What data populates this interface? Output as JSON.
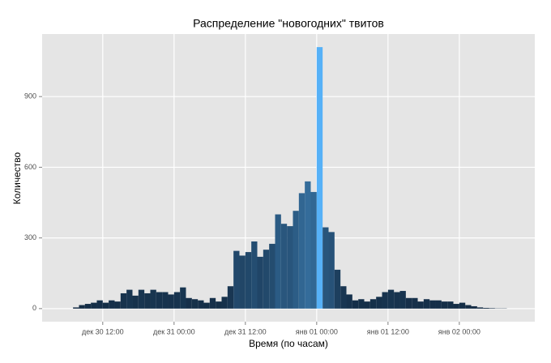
{
  "chart_data": {
    "type": "histogram",
    "title": "Распределение \"новогодних\" твитов",
    "x_label": "Время (по часам)",
    "y_label": "Количество",
    "bins": [
      7,
      8,
      9,
      10,
      11,
      12,
      13,
      14,
      15,
      16,
      17,
      18,
      19,
      20,
      21,
      22,
      23,
      24,
      25,
      26,
      27,
      28,
      29,
      30,
      31,
      32,
      33,
      34,
      35,
      36,
      37,
      38,
      39,
      40,
      41,
      42,
      43,
      44,
      45,
      46,
      47,
      48,
      49,
      50,
      51,
      52,
      53,
      54,
      55,
      56,
      57,
      58,
      59,
      60,
      61,
      62,
      63,
      64,
      65,
      66,
      67,
      68,
      69,
      70,
      71,
      72,
      73,
      74,
      75,
      76,
      77,
      78,
      79,
      80
    ],
    "values": [
      5,
      15,
      20,
      25,
      35,
      25,
      35,
      30,
      65,
      80,
      55,
      80,
      65,
      80,
      70,
      70,
      60,
      70,
      90,
      45,
      40,
      35,
      25,
      45,
      30,
      50,
      95,
      245,
      225,
      240,
      285,
      220,
      250,
      275,
      400,
      360,
      350,
      415,
      490,
      540,
      495,
      1110,
      345,
      325,
      165,
      95,
      60,
      35,
      40,
      30,
      40,
      50,
      70,
      80,
      70,
      75,
      45,
      45,
      30,
      40,
      35,
      35,
      30,
      30,
      20,
      25,
      15,
      10,
      5,
      3,
      2,
      1,
      1
    ],
    "low_color": "#132B43",
    "high_color": "#56B1F7",
    "xlim": [
      1.8,
      84.7
    ],
    "xticks": [
      {
        "value": 12,
        "label": "дек 30 12:00"
      },
      {
        "value": 24,
        "label": "дек 31 00:00"
      },
      {
        "value": 36,
        "label": "дек 31 12:00"
      },
      {
        "value": 48,
        "label": "янв 01 00:00"
      },
      {
        "value": 60,
        "label": "янв 01 12:00"
      },
      {
        "value": 72,
        "label": "янв 02 00:00"
      }
    ],
    "ylim": [
      -55.5,
      1165.5
    ],
    "yticks": [
      0,
      300,
      600,
      900
    ],
    "grid": true
  }
}
